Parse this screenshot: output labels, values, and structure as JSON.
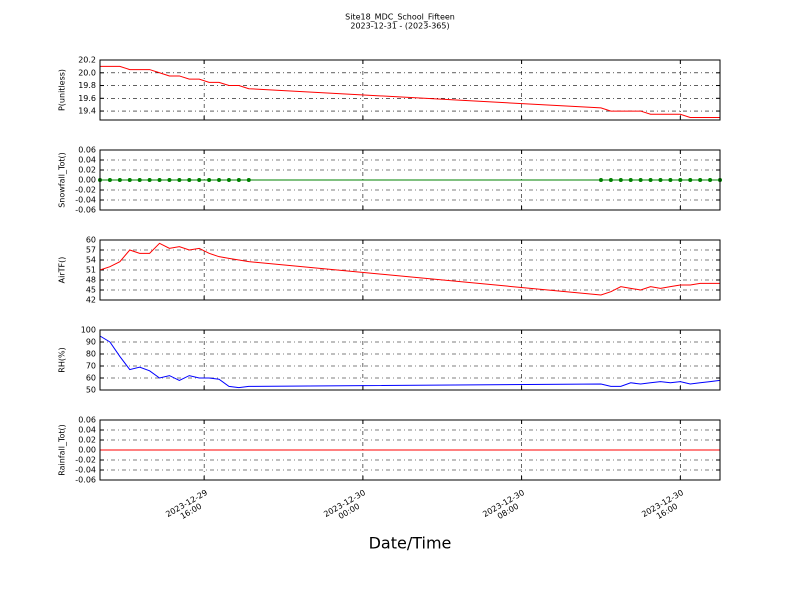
{
  "chart_data": [
    {
      "type": "line",
      "title": "Site18_MDC_School_Fifteen",
      "subtitle": "2023-12-31 - (2023-365)",
      "ylabel": "P(unitless)",
      "x": [
        "2023-12-29 10:45",
        "2023-12-29 11:15",
        "2023-12-29 11:45",
        "2023-12-29 12:15",
        "2023-12-29 12:45",
        "2023-12-29 13:15",
        "2023-12-29 13:45",
        "2023-12-29 14:15",
        "2023-12-29 14:45",
        "2023-12-29 15:15",
        "2023-12-29 15:45",
        "2023-12-29 16:15",
        "2023-12-29 16:45",
        "2023-12-29 17:15",
        "2023-12-29 17:45",
        "2023-12-29 18:15",
        "2023-12-30 12:00",
        "2023-12-30 12:30",
        "2023-12-30 13:00",
        "2023-12-30 13:30",
        "2023-12-30 14:00",
        "2023-12-30 14:30",
        "2023-12-30 15:00",
        "2023-12-30 15:30",
        "2023-12-30 16:00",
        "2023-12-30 16:30",
        "2023-12-30 17:00",
        "2023-12-30 17:30",
        "2023-12-30 18:00"
      ],
      "series": [
        {
          "name": "P",
          "color": "#ff0000",
          "values": [
            20.1,
            20.1,
            20.1,
            20.05,
            20.05,
            20.05,
            20.0,
            19.95,
            19.95,
            19.9,
            19.9,
            19.85,
            19.85,
            19.8,
            19.8,
            19.75,
            19.45,
            19.4,
            19.4,
            19.4,
            19.4,
            19.35,
            19.35,
            19.35,
            19.35,
            19.3,
            19.3,
            19.3,
            19.3
          ]
        }
      ],
      "xlim": [
        "2023-12-29 10:45",
        "2023-12-30 18:00"
      ],
      "xticks": [
        "2023-12-29 16:00",
        "2023-12-30 00:00",
        "2023-12-30 08:00",
        "2023-12-30 16:00"
      ],
      "ylim": [
        19.26,
        20.2
      ],
      "yticks": [
        19.4,
        19.6,
        19.8,
        {
          "value": 20,
          "label": "20.0"
        },
        20.2
      ],
      "grid": true
    },
    {
      "type": "line",
      "ylabel": "Snowfall_Tot()",
      "marker": "o",
      "x": [
        "2023-12-29 10:45",
        "2023-12-29 11:15",
        "2023-12-29 11:45",
        "2023-12-29 12:15",
        "2023-12-29 12:45",
        "2023-12-29 13:15",
        "2023-12-29 13:45",
        "2023-12-29 14:15",
        "2023-12-29 14:45",
        "2023-12-29 15:15",
        "2023-12-29 15:45",
        "2023-12-29 16:15",
        "2023-12-29 16:45",
        "2023-12-29 17:15",
        "2023-12-29 17:45",
        "2023-12-29 18:15",
        "2023-12-30 12:00",
        "2023-12-30 12:30",
        "2023-12-30 13:00",
        "2023-12-30 13:30",
        "2023-12-30 14:00",
        "2023-12-30 14:30",
        "2023-12-30 15:00",
        "2023-12-30 15:30",
        "2023-12-30 16:00",
        "2023-12-30 16:30",
        "2023-12-30 17:00",
        "2023-12-30 17:30",
        "2023-12-30 18:00"
      ],
      "series": [
        {
          "name": "Snowfall",
          "color": "#008000",
          "values": [
            0,
            0,
            0,
            0,
            0,
            0,
            0,
            0,
            0,
            0,
            0,
            0,
            0,
            0,
            0,
            0,
            0,
            0,
            0,
            0,
            0,
            0,
            0,
            0,
            0,
            0,
            0,
            0,
            0
          ]
        }
      ],
      "xlim": [
        "2023-12-29 10:45",
        "2023-12-30 18:00"
      ],
      "xticks": [
        "2023-12-29 16:00",
        "2023-12-30 00:00",
        "2023-12-30 08:00",
        "2023-12-30 16:00"
      ],
      "ylim": [
        -0.06,
        0.06
      ],
      "yticks": [
        -0.06,
        -0.04,
        -0.02,
        {
          "value": 0,
          "label": "0.00"
        },
        0.02,
        0.04,
        0.06
      ],
      "grid": true
    },
    {
      "type": "line",
      "ylabel": "AirTF()",
      "x": [
        "2023-12-29 10:45",
        "2023-12-29 11:15",
        "2023-12-29 11:45",
        "2023-12-29 12:15",
        "2023-12-29 12:45",
        "2023-12-29 13:15",
        "2023-12-29 13:45",
        "2023-12-29 14:15",
        "2023-12-29 14:45",
        "2023-12-29 15:15",
        "2023-12-29 15:45",
        "2023-12-29 16:15",
        "2023-12-29 16:45",
        "2023-12-29 17:15",
        "2023-12-29 17:45",
        "2023-12-29 18:15",
        "2023-12-30 12:00",
        "2023-12-30 12:30",
        "2023-12-30 13:00",
        "2023-12-30 13:30",
        "2023-12-30 14:00",
        "2023-12-30 14:30",
        "2023-12-30 15:00",
        "2023-12-30 15:30",
        "2023-12-30 16:00",
        "2023-12-30 16:30",
        "2023-12-30 17:00",
        "2023-12-30 17:30",
        "2023-12-30 18:00"
      ],
      "series": [
        {
          "name": "AirTF",
          "color": "#ff0000",
          "values": [
            51,
            52,
            53.5,
            57,
            56,
            56,
            59,
            57.5,
            58,
            57,
            57.5,
            56,
            55,
            54.5,
            54,
            53.5,
            43.5,
            44.5,
            46,
            45.5,
            45,
            46,
            45.5,
            46,
            46.5,
            46.5,
            47,
            47,
            47
          ]
        }
      ],
      "xlim": [
        "2023-12-29 10:45",
        "2023-12-30 18:00"
      ],
      "xticks": [
        "2023-12-29 16:00",
        "2023-12-30 00:00",
        "2023-12-30 08:00",
        "2023-12-30 16:00"
      ],
      "ylim": [
        42,
        60
      ],
      "yticks": [
        42,
        45,
        48,
        51,
        54,
        57,
        60
      ],
      "grid": true
    },
    {
      "type": "line",
      "ylabel": "RH(%)",
      "x": [
        "2023-12-29 10:45",
        "2023-12-29 11:15",
        "2023-12-29 11:45",
        "2023-12-29 12:15",
        "2023-12-29 12:45",
        "2023-12-29 13:15",
        "2023-12-29 13:45",
        "2023-12-29 14:15",
        "2023-12-29 14:45",
        "2023-12-29 15:15",
        "2023-12-29 15:45",
        "2023-12-29 16:15",
        "2023-12-29 16:45",
        "2023-12-29 17:15",
        "2023-12-29 17:45",
        "2023-12-29 18:15",
        "2023-12-30 12:00",
        "2023-12-30 12:30",
        "2023-12-30 13:00",
        "2023-12-30 13:30",
        "2023-12-30 14:00",
        "2023-12-30 14:30",
        "2023-12-30 15:00",
        "2023-12-30 15:30",
        "2023-12-30 16:00",
        "2023-12-30 16:30",
        "2023-12-30 17:00",
        "2023-12-30 17:30",
        "2023-12-30 18:00"
      ],
      "series": [
        {
          "name": "RH",
          "color": "#0000ff",
          "values": [
            95,
            90,
            78,
            67,
            69,
            66,
            60,
            62,
            58,
            62,
            60,
            60,
            59,
            53,
            52,
            53,
            55,
            53,
            53,
            56,
            55,
            56,
            57,
            56,
            57,
            55,
            56,
            57,
            58
          ]
        }
      ],
      "xlim": [
        "2023-12-29 10:45",
        "2023-12-30 18:00"
      ],
      "xticks": [
        "2023-12-29 16:00",
        "2023-12-30 00:00",
        "2023-12-30 08:00",
        "2023-12-30 16:00"
      ],
      "ylim": [
        50,
        100
      ],
      "yticks": [
        50,
        60,
        70,
        80,
        90,
        100
      ],
      "grid": true
    },
    {
      "type": "line",
      "ylabel": "Rainfall_Tot()",
      "xlabel": "Date/Time",
      "x": [
        "2023-12-29 10:45",
        "2023-12-29 11:15",
        "2023-12-29 11:45",
        "2023-12-29 12:15",
        "2023-12-29 12:45",
        "2023-12-29 13:15",
        "2023-12-29 13:45",
        "2023-12-29 14:15",
        "2023-12-29 14:45",
        "2023-12-29 15:15",
        "2023-12-29 15:45",
        "2023-12-29 16:15",
        "2023-12-29 16:45",
        "2023-12-29 17:15",
        "2023-12-29 17:45",
        "2023-12-29 18:15",
        "2023-12-30 12:00",
        "2023-12-30 12:30",
        "2023-12-30 13:00",
        "2023-12-30 13:30",
        "2023-12-30 14:00",
        "2023-12-30 14:30",
        "2023-12-30 15:00",
        "2023-12-30 15:30",
        "2023-12-30 16:00",
        "2023-12-30 16:30",
        "2023-12-30 17:00",
        "2023-12-30 17:30",
        "2023-12-30 18:00"
      ],
      "series": [
        {
          "name": "Rainfall",
          "color": "#ff0000",
          "values": [
            0,
            0,
            0,
            0,
            0,
            0,
            0,
            0,
            0,
            0,
            0,
            0,
            0,
            0,
            0,
            0,
            0,
            0,
            0,
            0,
            0,
            0,
            0,
            0,
            0,
            0,
            0,
            0,
            0
          ]
        }
      ],
      "xlim": [
        "2023-12-29 10:45",
        "2023-12-30 18:00"
      ],
      "xticks": [
        {
          "value": "2023-12-29 16:00",
          "label": "2023-12-29\n16:00"
        },
        {
          "value": "2023-12-30 00:00",
          "label": "2023-12-30\n00:00"
        },
        {
          "value": "2023-12-30 08:00",
          "label": "2023-12-30\n08:00"
        },
        {
          "value": "2023-12-30 16:00",
          "label": "2023-12-30\n16:00"
        }
      ],
      "ylim": [
        -0.06,
        0.06
      ],
      "yticks": [
        -0.06,
        -0.04,
        -0.02,
        {
          "value": 0,
          "label": "0.00"
        },
        0.02,
        0.04,
        0.06
      ],
      "grid": true
    }
  ]
}
